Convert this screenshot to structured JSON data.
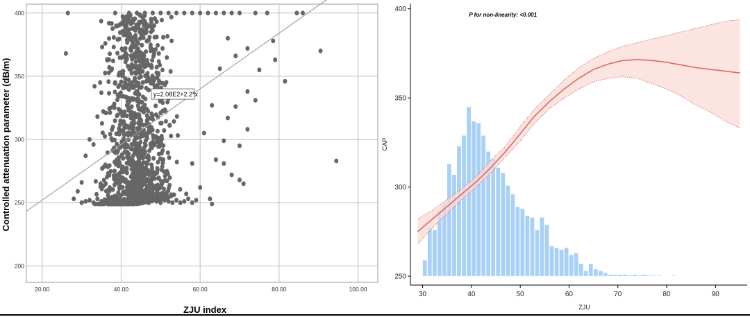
{
  "chart_data": [
    {
      "type": "scatter",
      "xlabel": "ZJU index",
      "ylabel": "Controlled attenuation parameter (dB/m)",
      "xlim": [
        16,
        105
      ],
      "ylim": [
        187,
        407
      ],
      "x_ticks": [
        "20.00",
        "40.00",
        "60.00",
        "80.00",
        "100.00"
      ],
      "x_tick_values": [
        20,
        40,
        60,
        80,
        100
      ],
      "y_ticks": [
        "200",
        "250",
        "300",
        "350",
        "400"
      ],
      "y_tick_values": [
        200,
        250,
        300,
        350,
        400
      ],
      "grid": true,
      "point_color": "#666666",
      "fit_line": {
        "label": "y=2.08E2+2.2*x",
        "intercept": 208,
        "slope": 2.2,
        "color": "#a0a0a0"
      },
      "points": [
        [
          26.5,
          400
        ],
        [
          26,
          368
        ],
        [
          94.5,
          283
        ],
        [
          90.5,
          370
        ],
        [
          81.5,
          346
        ],
        [
          86,
          400
        ],
        [
          84.5,
          400
        ],
        [
          77,
          400
        ],
        [
          78.5,
          378
        ],
        [
          79,
          363
        ],
        [
          74,
          331
        ],
        [
          72,
          338
        ],
        [
          71,
          265
        ],
        [
          70,
          268
        ],
        [
          69,
          326
        ],
        [
          67,
          317
        ],
        [
          66,
          281
        ],
        [
          64,
          284
        ],
        [
          63,
          249
        ],
        [
          62.5,
          253
        ],
        [
          60,
          400
        ],
        [
          62,
          400
        ],
        [
          64,
          400
        ],
        [
          66,
          400
        ],
        [
          68,
          400
        ],
        [
          70,
          400
        ],
        [
          74,
          400
        ],
        [
          58,
          400
        ],
        [
          56,
          400
        ],
        [
          54,
          400
        ],
        [
          52,
          400
        ],
        [
          50,
          400
        ],
        [
          48,
          400
        ],
        [
          46,
          400
        ],
        [
          44,
          400
        ],
        [
          42,
          400
        ],
        [
          38.5,
          400
        ],
        [
          60,
          262
        ],
        [
          58,
          281
        ],
        [
          61,
          305
        ],
        [
          63,
          327
        ],
        [
          65,
          356
        ],
        [
          67,
          380
        ],
        [
          69,
          366
        ],
        [
          72,
          372
        ],
        [
          75,
          355
        ],
        [
          66,
          299
        ],
        [
          68,
          272
        ],
        [
          72,
          308
        ],
        [
          70,
          295
        ],
        [
          28,
          253
        ],
        [
          29,
          259
        ],
        [
          30,
          266
        ],
        [
          31,
          287
        ],
        [
          32,
          300
        ],
        [
          33,
          296
        ],
        [
          34,
          318
        ],
        [
          35,
          337
        ],
        [
          36,
          376
        ],
        [
          37,
          357
        ],
        [
          30,
          250
        ],
        [
          31,
          251
        ],
        [
          32,
          252
        ],
        [
          33,
          250
        ],
        [
          34,
          253
        ],
        [
          35,
          251
        ],
        [
          36,
          250
        ],
        [
          37,
          252
        ],
        [
          38,
          251
        ],
        [
          39,
          250
        ],
        [
          40,
          252
        ],
        [
          41,
          251
        ],
        [
          42,
          250
        ],
        [
          43,
          252
        ],
        [
          44,
          251
        ],
        [
          45,
          250
        ],
        [
          46,
          253
        ],
        [
          47,
          250
        ],
        [
          48,
          252
        ],
        [
          49,
          251
        ],
        [
          50,
          250
        ],
        [
          51,
          252
        ],
        [
          52,
          251
        ],
        [
          53,
          250
        ],
        [
          54,
          252
        ],
        [
          55,
          250
        ],
        [
          56,
          251
        ],
        [
          57,
          253
        ],
        [
          58,
          250
        ],
        [
          59,
          252
        ]
      ],
      "density_region": {
        "x_center": 44,
        "x_spread": 7,
        "y_min": 249,
        "y_max": 400,
        "count": 1300
      }
    },
    {
      "type": "line",
      "title": "",
      "annotation": "P for non-linearity: <0.001",
      "xlabel": "ZJU",
      "ylabel": "CAP",
      "xlim": [
        27.5,
        96.5
      ],
      "ylim": [
        245,
        403
      ],
      "x_ticks": [
        "30",
        "40",
        "50",
        "60",
        "70",
        "80",
        "90"
      ],
      "x_tick_values": [
        30,
        40,
        50,
        60,
        70,
        80,
        90
      ],
      "y_ticks": [
        "250",
        "300",
        "350",
        "400"
      ],
      "y_tick_values": [
        250,
        300,
        350,
        400
      ],
      "grid": false,
      "line_color": "#e06666",
      "band_color": "#fbd9d6",
      "histogram_color": "#a9d1f7",
      "spline": {
        "x": [
          29,
          32,
          35,
          38,
          41,
          44,
          47,
          50,
          53,
          56,
          59,
          62,
          65,
          68,
          71,
          74,
          77,
          80,
          83,
          86,
          89,
          92,
          95
        ],
        "y": [
          275,
          282,
          289,
          296,
          303,
          311,
          320,
          330,
          340,
          348,
          355,
          361,
          366,
          369,
          371,
          371.5,
          371,
          370,
          368.5,
          367,
          366,
          365,
          364
        ],
        "lower": [
          268,
          277,
          285,
          293,
          300,
          308,
          317,
          326,
          336,
          344,
          350,
          355,
          359,
          361,
          362,
          361,
          358,
          355,
          351,
          346,
          342,
          337,
          333
        ],
        "upper": [
          282,
          287,
          293,
          299,
          306,
          315,
          323,
          334,
          344,
          352,
          360,
          367,
          372,
          376,
          379,
          381,
          383,
          385,
          387,
          389,
          391,
          393,
          394
        ]
      },
      "histogram": {
        "bin_start": 30,
        "bin_width": 1,
        "heights": [
          259,
          277,
          276,
          287,
          291,
          313,
          307,
          323,
          329,
          345,
          337,
          336,
          329,
          320,
          316,
          311,
          308,
          301,
          296,
          289,
          288,
          284,
          283,
          276,
          283,
          279,
          267,
          266,
          265,
          266,
          262,
          263,
          257,
          253,
          257,
          254,
          253,
          252,
          251,
          251,
          251,
          251,
          250.5,
          251,
          250.5,
          251,
          250.5,
          250.5,
          250.5,
          250.2,
          250.2,
          250.5,
          250.2,
          250.2,
          250.2,
          250.2,
          250.2,
          250.2,
          250.2,
          250.2,
          250.2
        ]
      }
    }
  ]
}
